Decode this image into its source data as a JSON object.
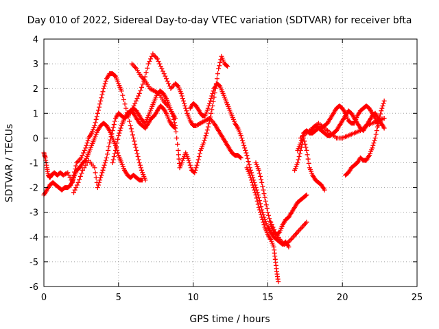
{
  "chart_data": {
    "type": "scatter",
    "title": "Day 010 of 2022, Sidereal Day-to-day VTEC variation (SDTVAR) for receiver bfta",
    "xlabel": "GPS time / hours",
    "ylabel": "SDTVAR / TECUs",
    "xlim": [
      0,
      25
    ],
    "ylim": [
      -6,
      4
    ],
    "xticks": [
      0,
      5,
      10,
      15,
      20,
      25
    ],
    "yticks": [
      -6,
      -5,
      -4,
      -3,
      -2,
      -1,
      0,
      1,
      2,
      3,
      4
    ],
    "grid": true,
    "legend": "none",
    "marker": "plus",
    "color": "#ff0000",
    "series": [
      {
        "x": [
          0.0,
          0.1,
          0.2,
          0.3,
          0.4,
          0.5,
          0.7,
          0.9,
          1.1,
          1.3,
          1.6,
          1.9,
          2.0,
          2.2,
          2.5,
          2.8,
          3.0,
          3.2,
          3.4,
          3.6,
          3.8,
          4.0,
          4.2,
          4.4,
          4.6,
          4.8,
          5.0,
          5.2,
          5.5,
          5.8,
          6.0,
          6.2,
          6.4,
          6.6,
          6.8
        ],
        "y": [
          -0.6,
          -0.8,
          -1.2,
          -1.5,
          -1.6,
          -1.5,
          -1.4,
          -1.5,
          -1.4,
          -1.5,
          -1.4,
          -1.8,
          -1.5,
          -1.0,
          -0.8,
          -0.4,
          0.0,
          0.2,
          0.5,
          1.0,
          1.5,
          2.0,
          2.4,
          2.6,
          2.6,
          2.5,
          2.2,
          1.9,
          1.2,
          0.5,
          0.0,
          -0.5,
          -1.0,
          -1.4,
          -1.7
        ]
      },
      {
        "x": [
          0.0,
          0.2,
          0.4,
          0.6,
          0.8,
          1.0,
          1.2,
          1.4,
          1.6,
          1.8,
          2.0,
          2.2,
          2.4,
          2.6,
          2.8,
          3.0,
          3.2,
          3.4,
          3.6,
          3.8,
          4.0,
          4.2,
          4.4,
          4.6,
          4.8,
          5.0,
          5.2,
          5.4,
          5.6,
          5.8,
          6.0,
          6.2,
          6.4,
          6.6
        ],
        "y": [
          -2.3,
          -2.1,
          -1.9,
          -1.8,
          -1.9,
          -2.0,
          -2.1,
          -2.0,
          -2.0,
          -1.9,
          -1.6,
          -1.3,
          -1.2,
          -1.0,
          -0.9,
          -0.6,
          -0.3,
          0.0,
          0.3,
          0.5,
          0.6,
          0.5,
          0.3,
          0.0,
          -0.3,
          -0.7,
          -1.0,
          -1.3,
          -1.5,
          -1.6,
          -1.5,
          -1.6,
          -1.7,
          -1.7
        ]
      },
      {
        "x": [
          2.0,
          2.3,
          2.6,
          3.0,
          3.4,
          3.6,
          3.8,
          4.0,
          4.2,
          4.4,
          4.6,
          4.8,
          5.0,
          5.2,
          5.4,
          5.6,
          5.8,
          6.0,
          6.2,
          6.4,
          6.6,
          6.8,
          7.0,
          7.2,
          7.4,
          7.6,
          7.8,
          8.0,
          8.2,
          8.4,
          8.6,
          8.8
        ],
        "y": [
          -2.2,
          -1.8,
          -1.3,
          -0.9,
          -1.2,
          -2.0,
          -1.6,
          -1.2,
          -0.8,
          -0.2,
          0.3,
          0.8,
          1.0,
          0.9,
          0.8,
          0.9,
          1.1,
          1.2,
          1.1,
          0.9,
          0.7,
          0.6,
          0.9,
          1.2,
          1.5,
          1.8,
          1.9,
          1.8,
          1.6,
          1.3,
          1.0,
          0.8
        ]
      },
      {
        "x": [
          4.6,
          4.8,
          5.0,
          5.2,
          5.4,
          5.6,
          5.8,
          6.0,
          6.2,
          6.4,
          6.6,
          6.8,
          7.0,
          7.2,
          7.4,
          7.6,
          7.8,
          8.0,
          8.2,
          8.4,
          8.6,
          8.8
        ],
        "y": [
          -1.0,
          -0.5,
          0.1,
          0.5,
          0.8,
          1.0,
          1.1,
          1.0,
          0.8,
          0.6,
          0.5,
          0.4,
          0.6,
          0.8,
          0.9,
          1.1,
          1.3,
          1.2,
          1.0,
          0.7,
          0.5,
          0.4
        ]
      },
      {
        "x": [
          5.8,
          6.1,
          6.4,
          6.7,
          7.0,
          7.3,
          7.6,
          7.9,
          8.2,
          8.5,
          8.8,
          9.0,
          9.2,
          9.4,
          9.6,
          9.8,
          10.0,
          10.2,
          10.5,
          10.8,
          11.1,
          11.4,
          11.6,
          11.8,
          12.0,
          12.2,
          12.4,
          12.6,
          12.8,
          13.0,
          13.2
        ],
        "y": [
          1.0,
          1.4,
          1.8,
          2.3,
          3.0,
          3.4,
          3.2,
          2.8,
          2.4,
          2.0,
          2.2,
          2.1,
          1.8,
          1.4,
          1.0,
          0.7,
          0.5,
          0.5,
          0.6,
          0.7,
          0.8,
          0.6,
          0.4,
          0.2,
          0.0,
          -0.2,
          -0.4,
          -0.6,
          -0.7,
          -0.7,
          -0.8
        ]
      },
      {
        "x": [
          5.9,
          6.2,
          6.5,
          6.8,
          7.1,
          7.4,
          7.7,
          8.0,
          8.3,
          8.6,
          8.8,
          9.0,
          9.1,
          9.3,
          9.5,
          9.7,
          9.9,
          10.1,
          10.3,
          10.5,
          10.7,
          10.9,
          11.1,
          11.3,
          11.5,
          11.7,
          11.9,
          12.1,
          12.3
        ],
        "y": [
          3.0,
          2.8,
          2.5,
          2.3,
          2.0,
          1.9,
          1.8,
          1.5,
          1.3,
          1.0,
          0.5,
          -0.5,
          -1.2,
          -0.9,
          -0.6,
          -0.9,
          -1.3,
          -1.4,
          -1.0,
          -0.5,
          -0.2,
          0.2,
          0.7,
          1.3,
          2.0,
          2.8,
          3.3,
          3.0,
          2.9
        ]
      },
      {
        "x": [
          9.8,
          10.0,
          10.2,
          10.4,
          10.6,
          10.8,
          11.0,
          11.2,
          11.4,
          11.6,
          11.8,
          12.0,
          12.2,
          12.4,
          12.6,
          12.8,
          13.0,
          13.2,
          13.4,
          13.6,
          13.8,
          14.0,
          14.2,
          14.4,
          14.6,
          14.8,
          15.0,
          15.2,
          15.4,
          15.6,
          15.8,
          16.0,
          16.2,
          16.4
        ],
        "y": [
          1.2,
          1.4,
          1.3,
          1.1,
          0.9,
          0.9,
          1.2,
          1.6,
          2.0,
          2.2,
          2.1,
          1.8,
          1.5,
          1.2,
          0.9,
          0.6,
          0.4,
          0.1,
          -0.3,
          -0.7,
          -1.2,
          -1.6,
          -2.0,
          -2.4,
          -2.9,
          -3.3,
          -3.6,
          -3.8,
          -4.0,
          -4.1,
          -4.2,
          -4.3,
          -4.2,
          -4.4
        ]
      },
      {
        "x": [
          13.6,
          13.8,
          14.0,
          14.2,
          14.4,
          14.6,
          14.8,
          15.0,
          15.2,
          15.4,
          15.5,
          15.6,
          15.7
        ],
        "y": [
          -1.2,
          -1.5,
          -1.9,
          -2.3,
          -2.8,
          -3.2,
          -3.6,
          -3.9,
          -4.1,
          -4.4,
          -4.9,
          -5.4,
          -5.8
        ]
      },
      {
        "x": [
          14.2,
          14.4,
          14.6,
          14.8,
          15.0,
          15.2,
          15.4,
          15.6,
          15.8,
          16.0,
          16.2,
          16.4,
          16.6,
          16.8,
          17.0,
          17.2,
          17.4,
          17.6
        ],
        "y": [
          -1.0,
          -1.3,
          -1.8,
          -2.4,
          -3.0,
          -3.5,
          -3.8,
          -3.9,
          -3.8,
          -3.5,
          -3.3,
          -3.2,
          -3.0,
          -2.8,
          -2.6,
          -2.5,
          -2.4,
          -2.3
        ]
      },
      {
        "x": [
          15.2,
          15.5,
          15.8,
          16.1,
          16.4,
          16.7,
          17.0,
          17.3,
          17.6
        ],
        "y": [
          -3.4,
          -3.8,
          -4.1,
          -4.3,
          -4.2,
          -4.0,
          -3.8,
          -3.6,
          -3.4
        ]
      },
      {
        "x": [
          16.8,
          17.0,
          17.2,
          17.4,
          17.6,
          17.8,
          18.0,
          18.2,
          18.4,
          18.6,
          18.8
        ],
        "y": [
          -1.3,
          -1.0,
          -0.5,
          0.0,
          -0.5,
          -1.2,
          -1.5,
          -1.7,
          -1.8,
          -1.9,
          -2.1
        ]
      },
      {
        "x": [
          17.0,
          17.2,
          17.4,
          17.6,
          17.8,
          18.0,
          18.2,
          18.4,
          18.6,
          18.8,
          19.0,
          19.2,
          19.4,
          19.6,
          19.8,
          20.0,
          20.2,
          20.4,
          20.6,
          20.8,
          21.0,
          21.2,
          21.4,
          21.6,
          21.8,
          22.0,
          22.2,
          22.4
        ],
        "y": [
          -0.5,
          -0.2,
          0.2,
          0.3,
          0.2,
          0.2,
          0.3,
          0.4,
          0.4,
          0.5,
          0.6,
          0.8,
          1.0,
          1.2,
          1.3,
          1.2,
          1.0,
          0.7,
          0.6,
          0.6,
          0.9,
          1.1,
          1.2,
          1.3,
          1.2,
          1.0,
          0.8,
          0.5
        ]
      },
      {
        "x": [
          17.8,
          18.0,
          18.2,
          18.4,
          18.6,
          18.8,
          19.0,
          19.2,
          19.4,
          19.6,
          19.8,
          20.0,
          20.2,
          20.4,
          20.6,
          20.8,
          21.0,
          21.2,
          21.4,
          21.6,
          21.8,
          22.0,
          22.2,
          22.4,
          22.6,
          22.8
        ],
        "y": [
          0.2,
          0.4,
          0.5,
          0.4,
          0.3,
          0.2,
          0.1,
          0.1,
          0.2,
          0.3,
          0.5,
          0.7,
          0.9,
          1.1,
          1.0,
          0.8,
          0.6,
          0.4,
          0.3,
          0.5,
          0.7,
          0.9,
          1.0,
          0.8,
          0.6,
          0.4
        ]
      },
      {
        "x": [
          17.2,
          17.6,
          18.0,
          18.4,
          18.8,
          19.2,
          19.6,
          20.0,
          20.4,
          20.8,
          21.2,
          21.6,
          22.0,
          22.4,
          22.8
        ],
        "y": [
          0.0,
          0.2,
          0.4,
          0.6,
          0.4,
          0.2,
          0.0,
          0.0,
          0.1,
          0.2,
          0.3,
          0.5,
          0.6,
          0.7,
          0.8
        ]
      },
      {
        "x": [
          20.2,
          20.4,
          20.6,
          20.8,
          21.0,
          21.2,
          21.4,
          21.6,
          21.8,
          22.0,
          22.2,
          22.4,
          22.6,
          22.8
        ],
        "y": [
          -1.5,
          -1.4,
          -1.2,
          -1.1,
          -1.0,
          -0.8,
          -0.9,
          -0.9,
          -0.7,
          -0.4,
          0.0,
          0.6,
          1.1,
          1.5
        ]
      }
    ]
  }
}
